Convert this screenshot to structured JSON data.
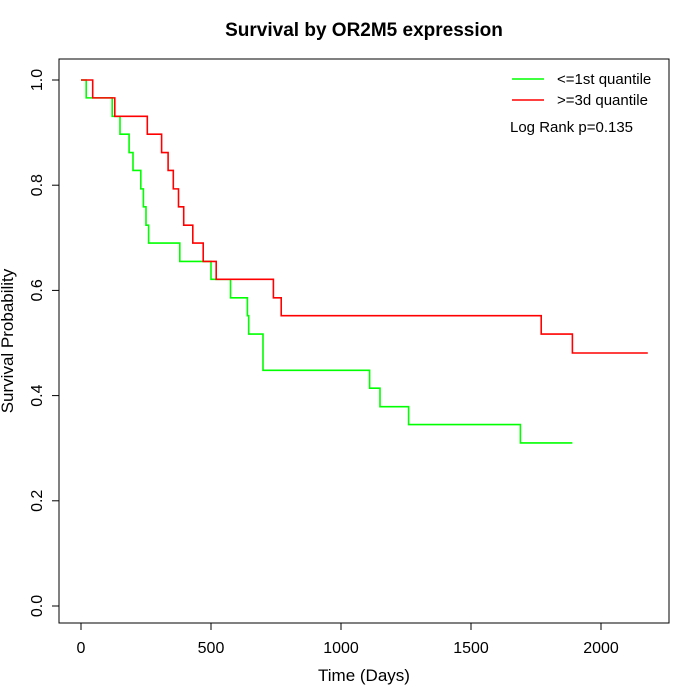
{
  "chart_data": {
    "type": "line",
    "subtype": "kaplan-meier step",
    "title": "Survival by OR2M5 expression",
    "xlabel": "Time (Days)",
    "ylabel": "Survival Probability",
    "xlim": [
      0,
      2200
    ],
    "ylim": [
      0,
      1.0
    ],
    "xticks": [
      0,
      500,
      1000,
      1500,
      2000
    ],
    "xtick_labels": [
      "0",
      "500",
      "1000",
      "1500",
      "2000"
    ],
    "yticks": [
      0.0,
      0.2,
      0.4,
      0.6,
      0.8,
      1.0
    ],
    "ytick_labels": [
      "0.0",
      "0.2",
      "0.4",
      "0.6",
      "0.8",
      "1.0"
    ],
    "grid": false,
    "legend_position": "top-right",
    "annotation": "Log Rank p=0.135",
    "series": [
      {
        "name": "<=1st quantile",
        "color": "#00ff00",
        "x": [
          0,
          20,
          40,
          120,
          150,
          185,
          200,
          230,
          240,
          250,
          260,
          380,
          500,
          575,
          640,
          645,
          700,
          1110,
          1150,
          1260,
          1690,
          1890
        ],
        "y": [
          1.0,
          0.966,
          0.966,
          0.931,
          0.897,
          0.862,
          0.828,
          0.793,
          0.759,
          0.724,
          0.69,
          0.655,
          0.621,
          0.586,
          0.552,
          0.517,
          0.448,
          0.414,
          0.379,
          0.345,
          0.31,
          0.31
        ]
      },
      {
        "name": ">=3d quantile",
        "color": "#ff0000",
        "x": [
          0,
          45,
          130,
          255,
          310,
          335,
          355,
          375,
          395,
          430,
          470,
          520,
          740,
          770,
          1770,
          1890,
          2180
        ],
        "y": [
          1.0,
          0.966,
          0.931,
          0.897,
          0.862,
          0.828,
          0.793,
          0.759,
          0.724,
          0.69,
          0.655,
          0.621,
          0.586,
          0.552,
          0.517,
          0.481,
          0.481
        ]
      }
    ]
  }
}
